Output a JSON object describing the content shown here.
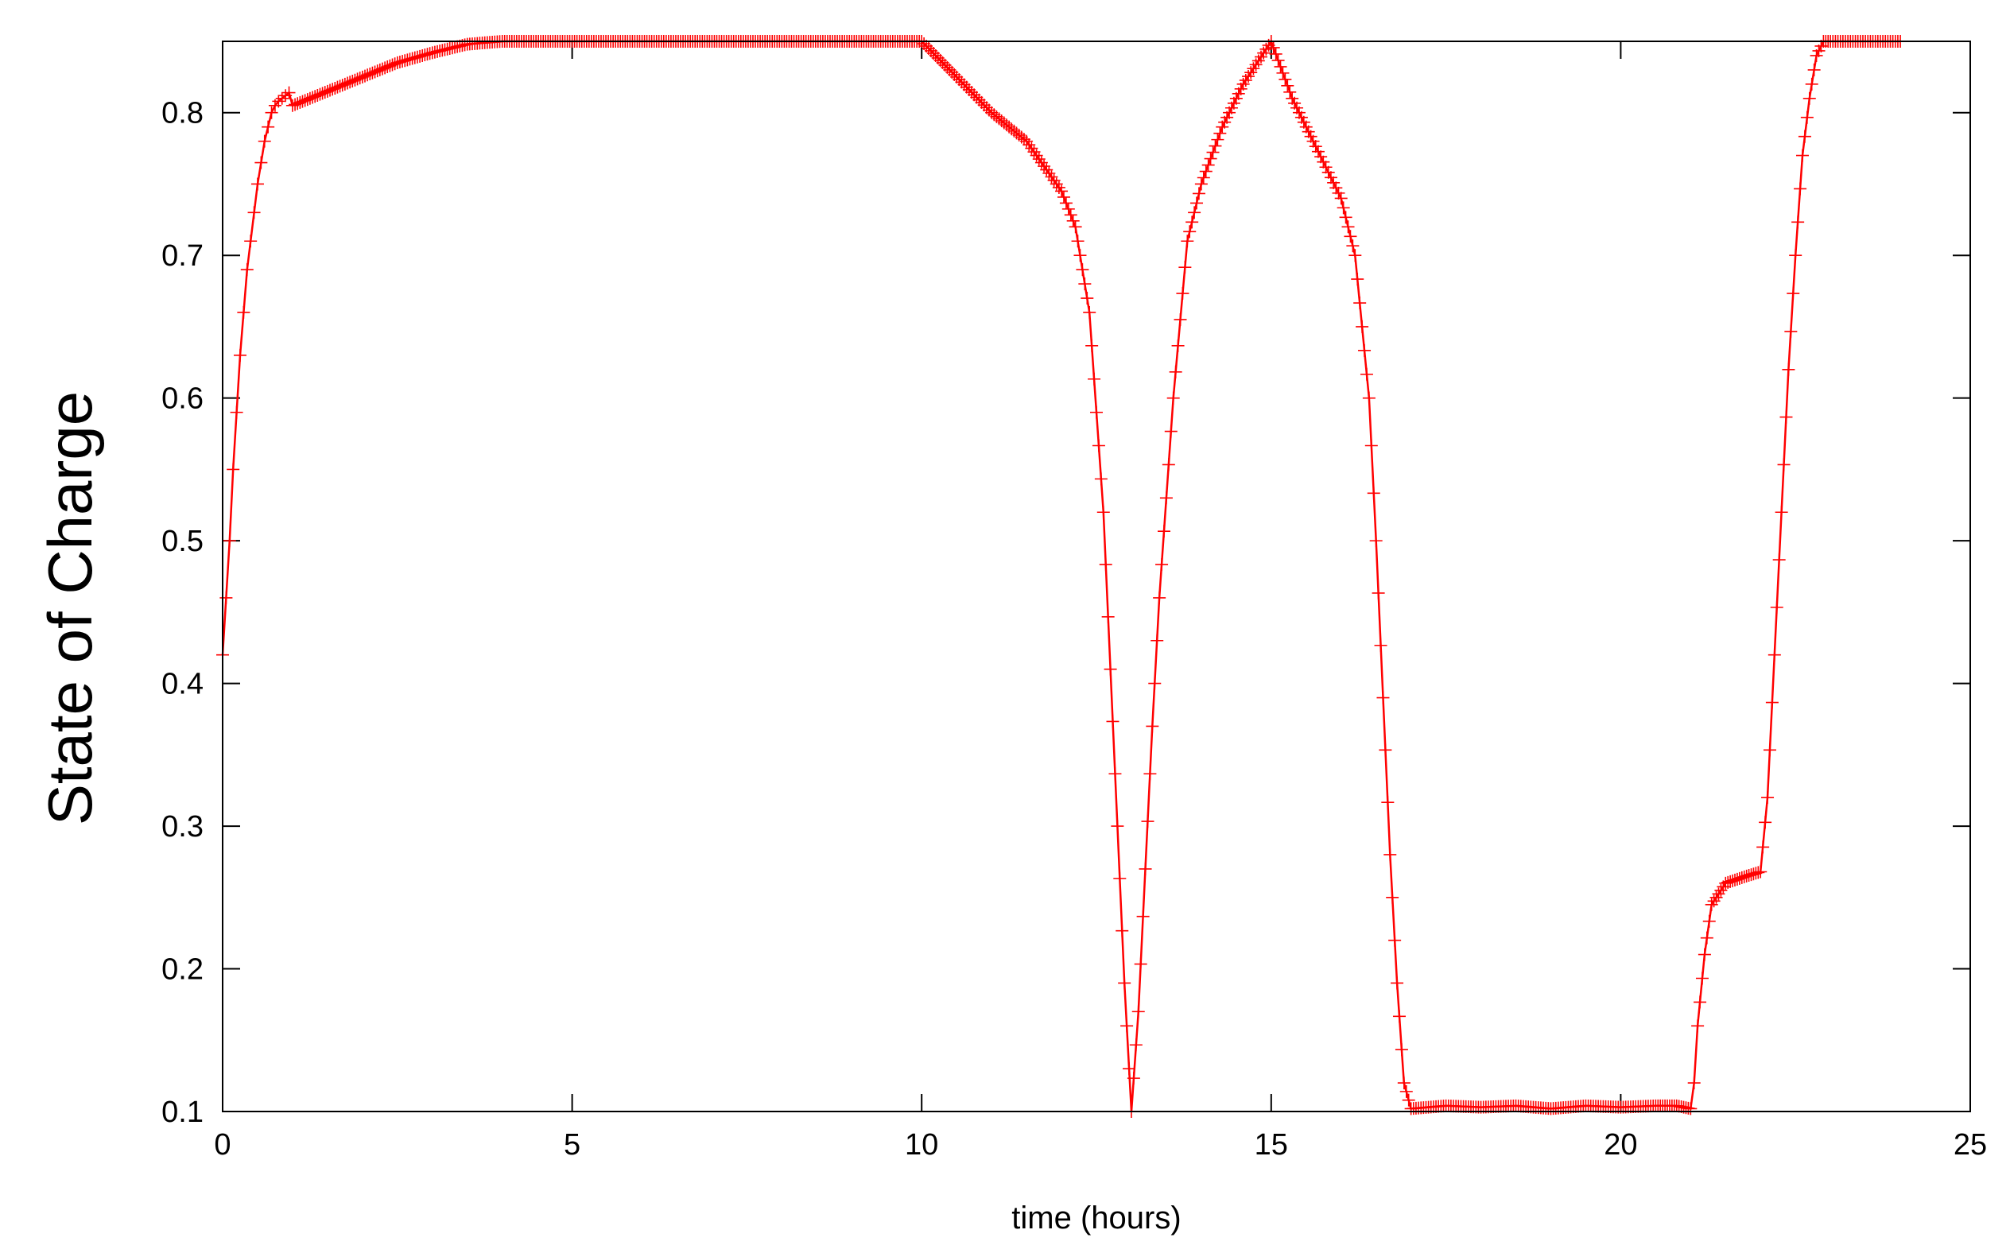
{
  "chart_data": {
    "type": "line",
    "title": "",
    "xlabel": "time (hours)",
    "ylabel": "State of Charge",
    "xlim": [
      0,
      25
    ],
    "ylim": [
      0.1,
      0.85
    ],
    "x_ticks": [
      0,
      5,
      10,
      15,
      20,
      25
    ],
    "y_ticks": [
      0.1,
      0.2,
      0.3,
      0.4,
      0.5,
      0.6,
      0.7,
      0.8
    ],
    "grid": false,
    "legend": "none",
    "series_color": "#ff0000",
    "marker": "plus",
    "series": [
      {
        "x": [
          0,
          0.05,
          0.1,
          0.15,
          0.2,
          0.25,
          0.3,
          0.35,
          0.4,
          0.45,
          0.5,
          0.55,
          0.6,
          0.65,
          0.7,
          0.75,
          0.8,
          0.85,
          0.9,
          0.95,
          1.0,
          1.5,
          2.0,
          2.5,
          3.0,
          3.5,
          4.0,
          5.0,
          6.0,
          7.0,
          8.0,
          9.0,
          10.0,
          10.2,
          10.5,
          11.0,
          11.5,
          12.0,
          12.2,
          12.4,
          12.6,
          12.7,
          12.8,
          12.9,
          13.0,
          13.1,
          13.2,
          13.3,
          13.4,
          13.6,
          13.8,
          14.0,
          14.3,
          14.6,
          15.0,
          15.3,
          15.6,
          16.0,
          16.2,
          16.4,
          16.5,
          16.6,
          16.7,
          16.8,
          16.9,
          17.0,
          17.5,
          18.0,
          18.5,
          19.0,
          19.5,
          20.0,
          20.5,
          20.8,
          21.0,
          21.05,
          21.1,
          21.2,
          21.3,
          21.5,
          21.8,
          22.0,
          22.1,
          22.2,
          22.3,
          22.4,
          22.5,
          22.6,
          22.7,
          22.8,
          22.9,
          23.0,
          23.5,
          24.0
        ],
        "y": [
          0.42,
          0.46,
          0.5,
          0.55,
          0.59,
          0.63,
          0.66,
          0.69,
          0.71,
          0.73,
          0.75,
          0.765,
          0.78,
          0.79,
          0.8,
          0.805,
          0.808,
          0.81,
          0.812,
          0.814,
          0.805,
          0.815,
          0.825,
          0.835,
          0.842,
          0.848,
          0.85,
          0.85,
          0.85,
          0.85,
          0.85,
          0.85,
          0.85,
          0.84,
          0.825,
          0.8,
          0.78,
          0.745,
          0.72,
          0.66,
          0.52,
          0.41,
          0.3,
          0.19,
          0.1,
          0.17,
          0.27,
          0.37,
          0.46,
          0.6,
          0.71,
          0.75,
          0.79,
          0.82,
          0.85,
          0.81,
          0.78,
          0.74,
          0.7,
          0.6,
          0.5,
          0.39,
          0.28,
          0.19,
          0.12,
          0.102,
          0.104,
          0.103,
          0.104,
          0.102,
          0.104,
          0.103,
          0.104,
          0.104,
          0.102,
          0.12,
          0.16,
          0.21,
          0.245,
          0.26,
          0.265,
          0.268,
          0.32,
          0.42,
          0.52,
          0.62,
          0.7,
          0.77,
          0.81,
          0.84,
          0.85,
          0.85,
          0.85,
          0.85
        ]
      }
    ]
  }
}
